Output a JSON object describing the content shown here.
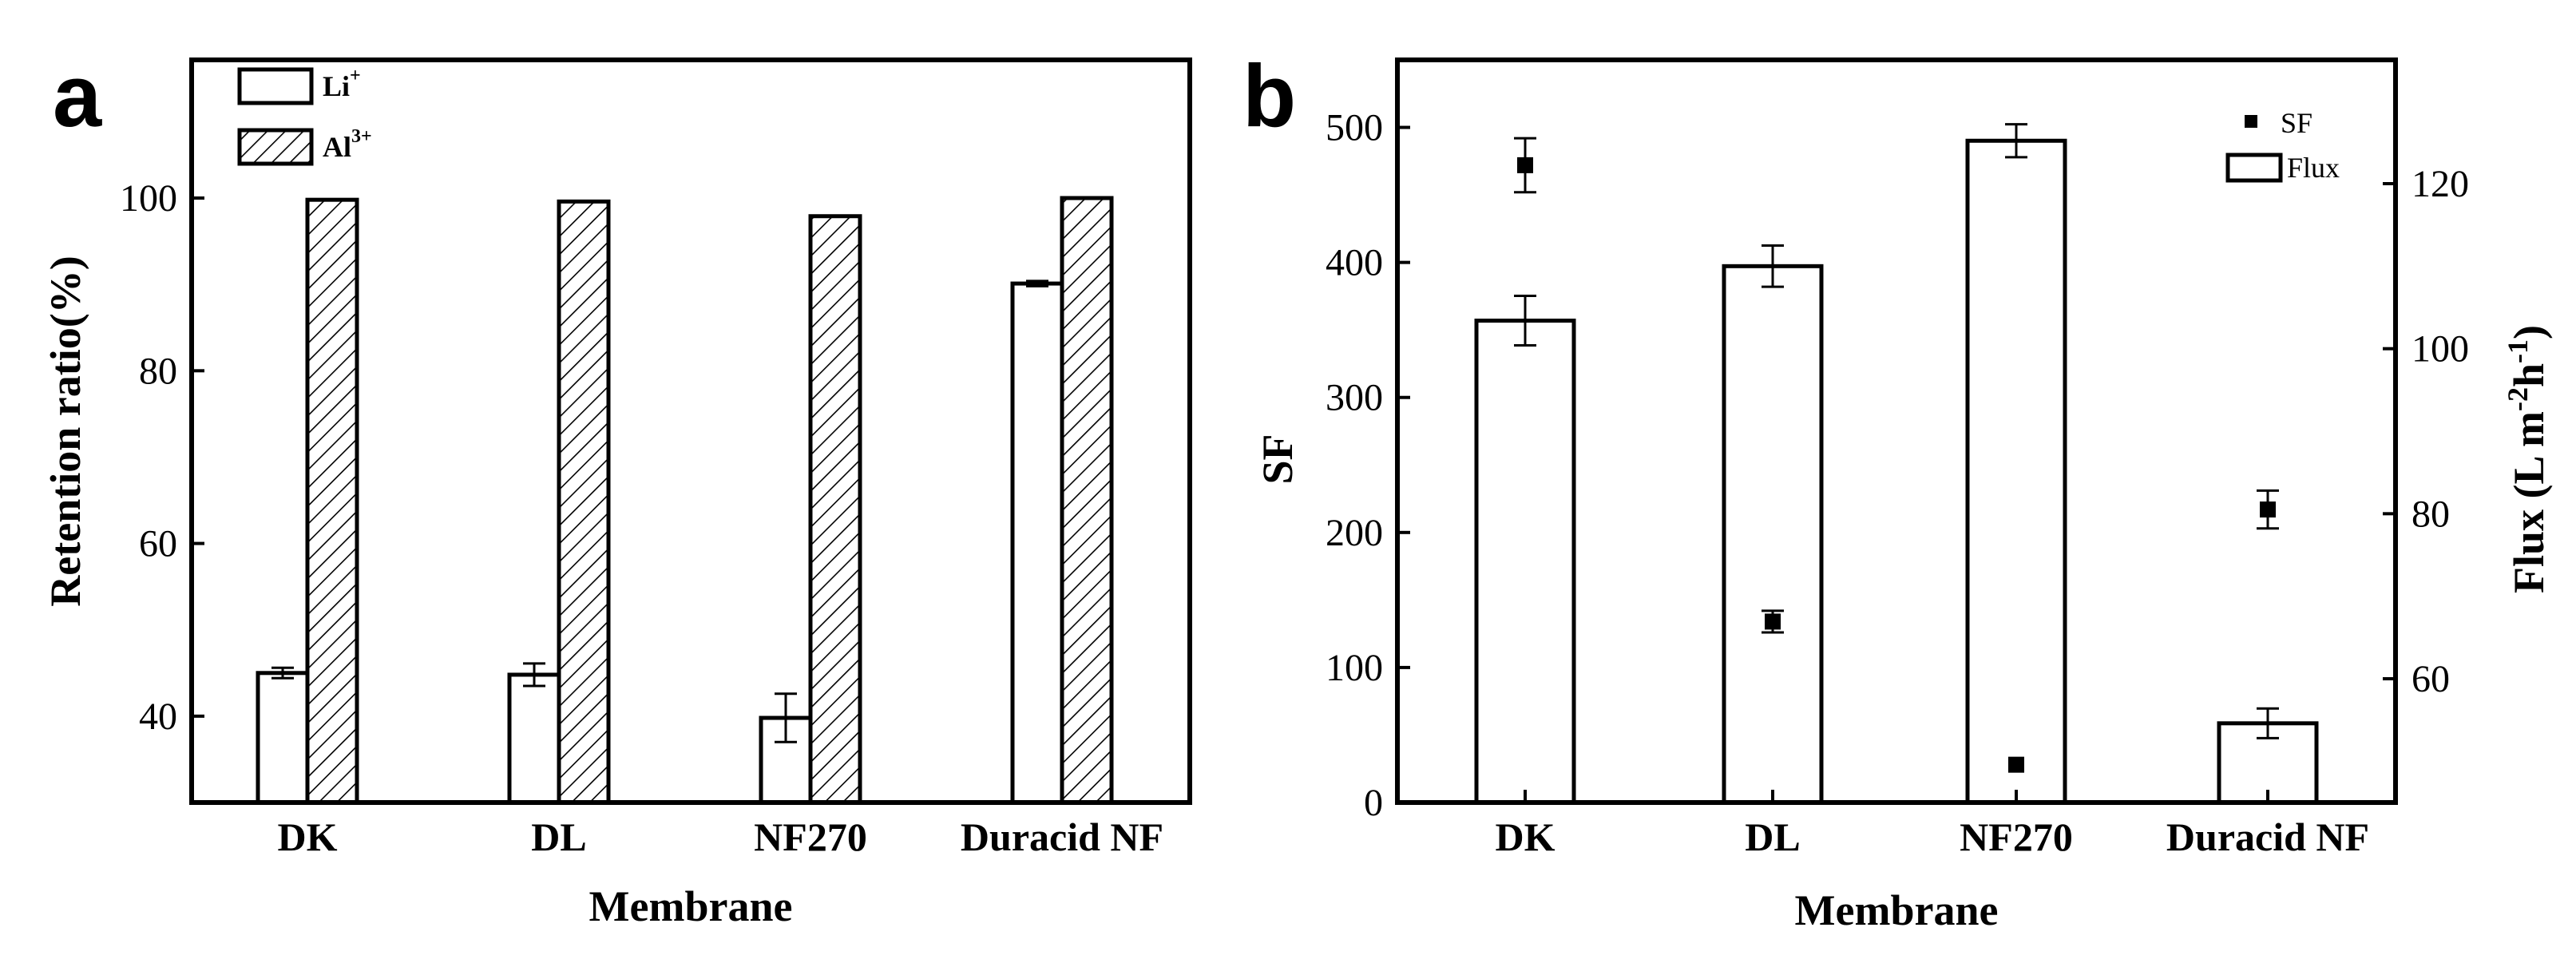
{
  "chart_data": [
    {
      "panel": "a",
      "type": "bar",
      "categories": [
        "DK",
        "DL",
        "NF270",
        "Duracid NF"
      ],
      "series": [
        {
          "name": "Li",
          "superscript": "+",
          "pattern": "open",
          "values": [
            45.0,
            44.8,
            39.8,
            90.1
          ],
          "errors": [
            0.6,
            1.3,
            2.8,
            0.3
          ]
        },
        {
          "name": "Al",
          "superscript": "3+",
          "pattern": "hatched",
          "values": [
            99.8,
            99.6,
            97.9,
            100.0
          ],
          "errors": [
            0,
            0,
            0,
            0
          ]
        }
      ],
      "xlabel": "Membrane",
      "ylabel": "Retention ratio(%)",
      "ylim": [
        30,
        116
      ],
      "yticks": [
        40,
        60,
        80,
        100
      ],
      "legend": "top-left",
      "grid": false
    },
    {
      "panel": "b",
      "type": "bar",
      "categories": [
        "DK",
        "DL",
        "NF270",
        "Duracid NF"
      ],
      "series": [
        {
          "name": "Flux",
          "axis": "right",
          "style": "bar",
          "values": [
            103.4,
            110.0,
            125.2,
            54.6
          ],
          "errors": [
            3.0,
            2.5,
            2.0,
            1.8
          ]
        },
        {
          "name": "SF",
          "axis": "left",
          "style": "marker",
          "values": [
            472,
            134,
            28,
            217
          ],
          "errors": [
            20,
            8,
            0,
            14
          ]
        }
      ],
      "xlabel": "Membrane",
      "ylabel": "SF",
      "ylabel_right": "Flux (L m",
      "ylabel_right_sup1": "-2",
      "ylabel_right_mid": "h",
      "ylabel_right_sup2": "-1",
      "ylabel_right_end": ")",
      "ylim": [
        0,
        550
      ],
      "ylim_right": [
        45,
        135
      ],
      "yticks": [
        0,
        100,
        200,
        300,
        400,
        500
      ],
      "yticks_right": [
        60,
        80,
        100,
        120
      ],
      "legend": "top-right",
      "grid": false
    }
  ],
  "panels": {
    "a": {
      "letter": "a"
    },
    "b": {
      "letter": "b"
    }
  },
  "legend_a": {
    "item1_name": "Li",
    "item1_sup": "+",
    "item2_name": "Al",
    "item2_sup": "3+"
  },
  "legend_b": {
    "item1": "SF",
    "item2": "Flux"
  }
}
